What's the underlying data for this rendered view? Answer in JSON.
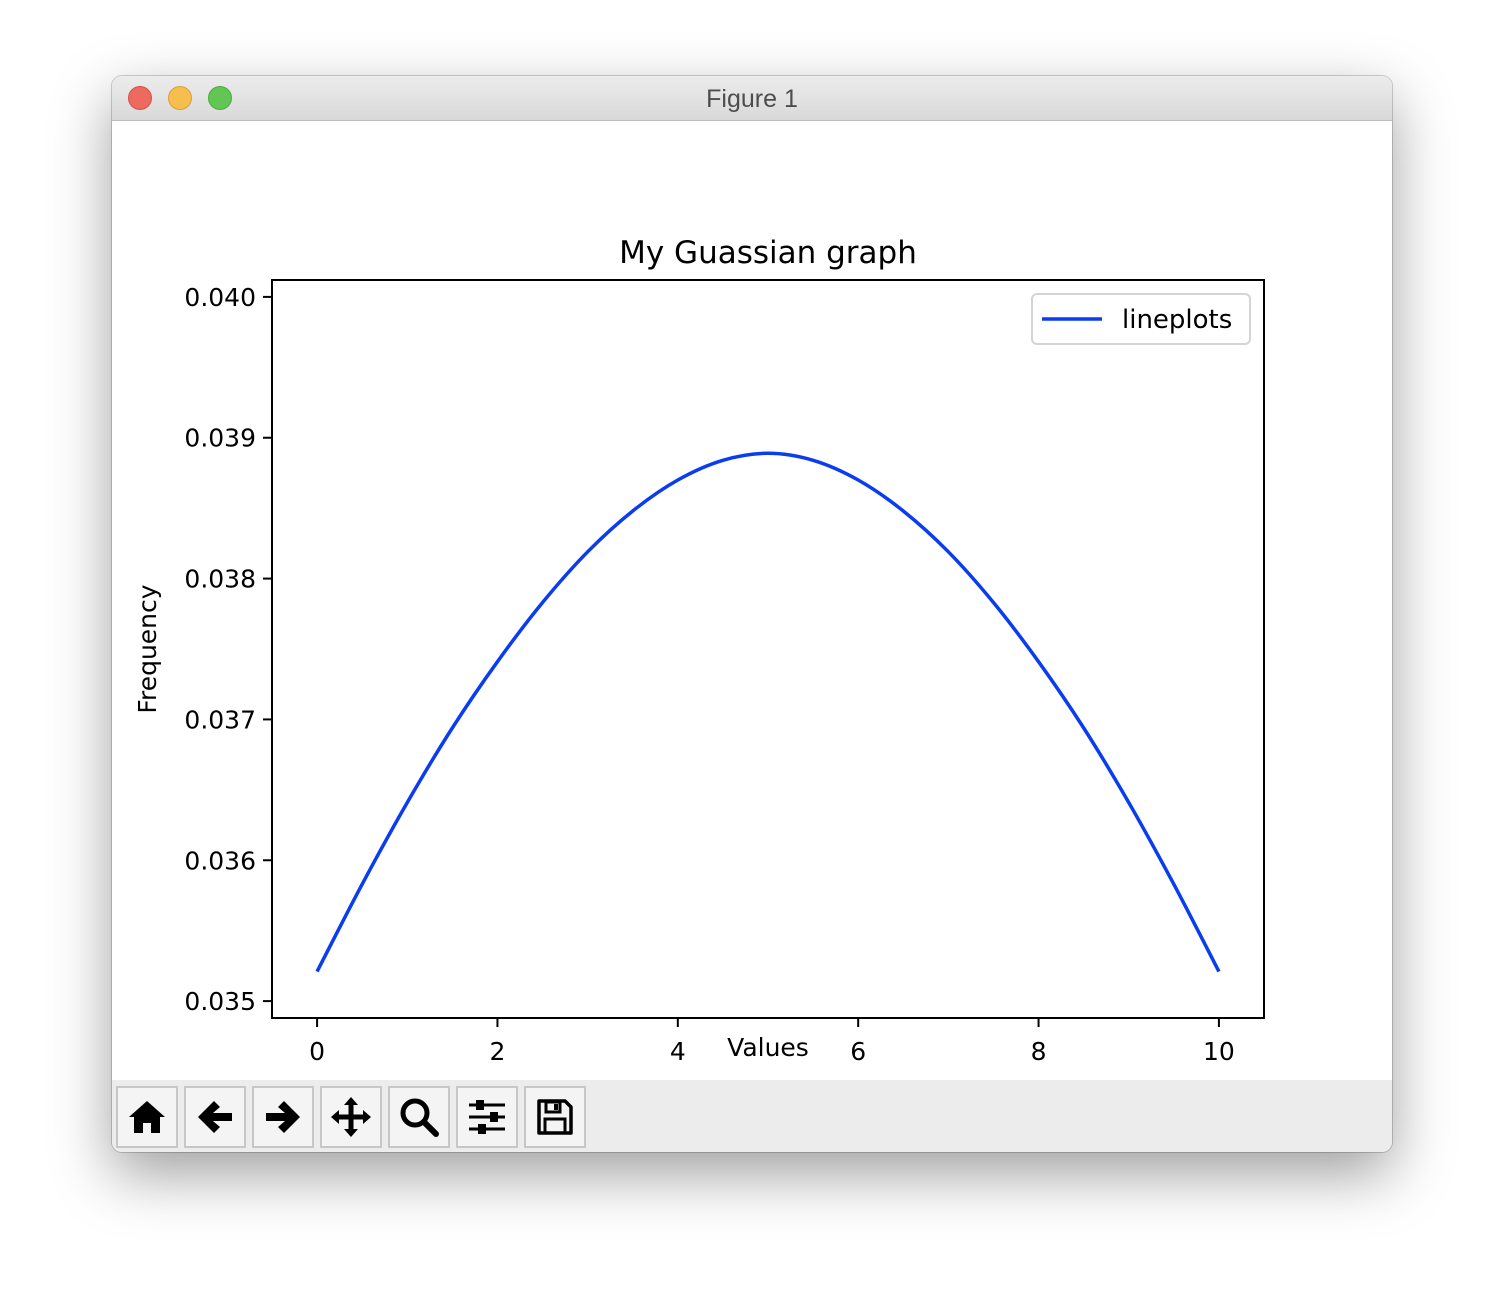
{
  "window": {
    "title": "Figure 1"
  },
  "toolbar": {
    "buttons": [
      {
        "name": "home-button",
        "icon": "home-icon"
      },
      {
        "name": "back-button",
        "icon": "arrow-left-icon"
      },
      {
        "name": "forward-button",
        "icon": "arrow-right-icon"
      },
      {
        "name": "pan-button",
        "icon": "move-icon"
      },
      {
        "name": "zoom-button",
        "icon": "search-icon"
      },
      {
        "name": "configure-subplots-button",
        "icon": "sliders-icon"
      },
      {
        "name": "save-button",
        "icon": "floppy-disk-icon"
      }
    ]
  },
  "chart_data": {
    "type": "line",
    "title": "My Guassian graph",
    "xlabel": "Values",
    "ylabel": "Frequency",
    "xlim": [
      -0.5,
      10.5
    ],
    "ylim": [
      0.03488,
      0.04012
    ],
    "xticks": [
      0,
      2,
      4,
      6,
      8,
      10
    ],
    "xtick_labels": [
      "0",
      "2",
      "4",
      "6",
      "8",
      "10"
    ],
    "yticks": [
      0.035,
      0.036,
      0.037,
      0.038,
      0.039,
      0.04
    ],
    "ytick_labels": [
      "0.035",
      "0.036",
      "0.037",
      "0.038",
      "0.039",
      "0.040"
    ],
    "grid": false,
    "legend": {
      "position": "top-right",
      "entries": [
        "lineplots"
      ]
    },
    "series": [
      {
        "name": "lineplots",
        "color": "#0a3cf0",
        "x": [
          0,
          0.5,
          1,
          1.5,
          2,
          2.5,
          3,
          3.5,
          4,
          4.5,
          5,
          5.5,
          6,
          6.5,
          7,
          7.5,
          8,
          8.5,
          9,
          9.5,
          10
        ],
        "y": [
          0.03521,
          0.03583,
          0.03641,
          0.03694,
          0.03741,
          0.03783,
          0.03819,
          0.03848,
          0.0387,
          0.03884,
          0.03889,
          0.03884,
          0.0387,
          0.03848,
          0.03819,
          0.03783,
          0.03741,
          0.03694,
          0.03641,
          0.03583,
          0.03521
        ]
      }
    ]
  }
}
